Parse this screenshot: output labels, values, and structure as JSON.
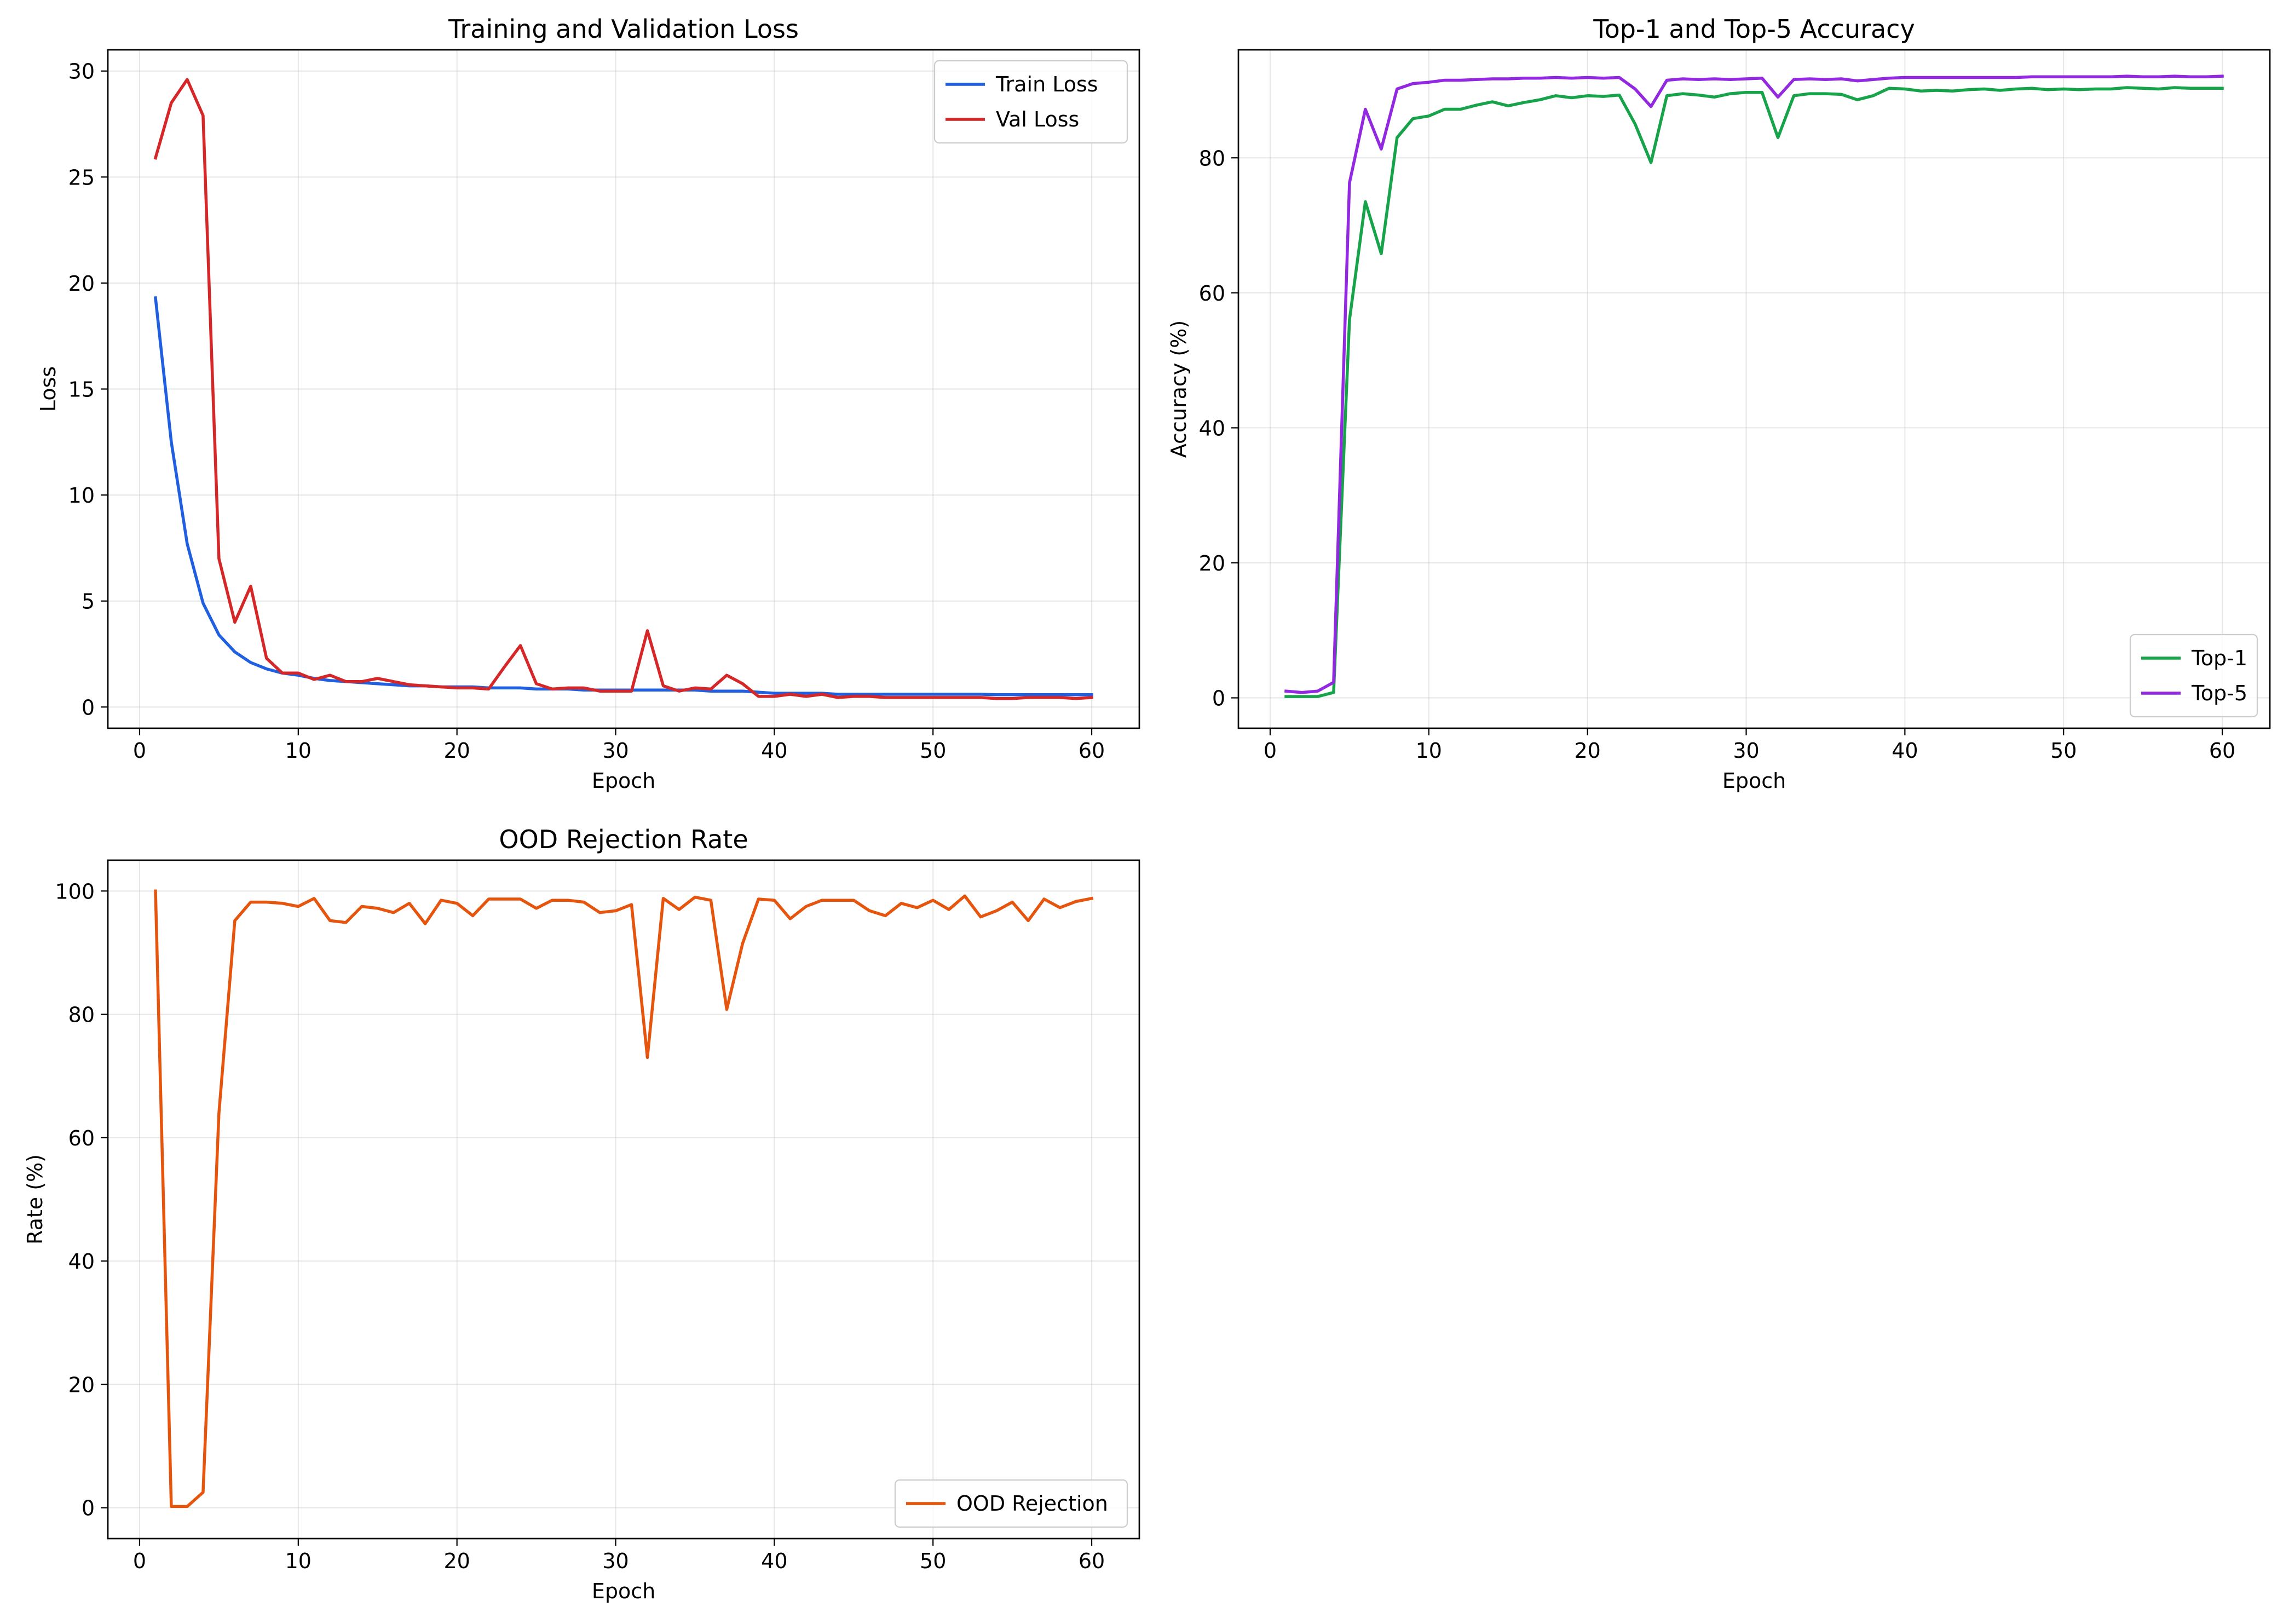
{
  "chart_data": [
    {
      "type": "line",
      "title": "Training and Validation Loss",
      "xlabel": "Epoch",
      "ylabel": "Loss",
      "xlim": [
        -2,
        63
      ],
      "ylim": [
        -1.0,
        31.0
      ],
      "xticks": [
        0,
        10,
        20,
        30,
        40,
        50,
        60
      ],
      "yticks": [
        0,
        5,
        10,
        15,
        20,
        25,
        30
      ],
      "grid": true,
      "legend_position": "top-right",
      "x": [
        1,
        2,
        3,
        4,
        5,
        6,
        7,
        8,
        9,
        10,
        11,
        12,
        13,
        14,
        15,
        16,
        17,
        18,
        19,
        20,
        21,
        22,
        23,
        24,
        25,
        26,
        27,
        28,
        29,
        30,
        31,
        32,
        33,
        34,
        35,
        36,
        37,
        38,
        39,
        40,
        41,
        42,
        43,
        44,
        45,
        46,
        47,
        48,
        49,
        50,
        51,
        52,
        53,
        54,
        55,
        56,
        57,
        58,
        59,
        60
      ],
      "series": [
        {
          "name": "Train Loss",
          "color": "#1f5fe0",
          "values": [
            19.3,
            12.5,
            7.7,
            4.9,
            3.4,
            2.6,
            2.1,
            1.8,
            1.6,
            1.5,
            1.35,
            1.25,
            1.2,
            1.15,
            1.1,
            1.05,
            1.0,
            1.0,
            0.95,
            0.95,
            0.95,
            0.9,
            0.9,
            0.9,
            0.85,
            0.85,
            0.85,
            0.8,
            0.8,
            0.8,
            0.8,
            0.8,
            0.8,
            0.8,
            0.8,
            0.75,
            0.75,
            0.75,
            0.7,
            0.65,
            0.65,
            0.65,
            0.65,
            0.6,
            0.6,
            0.6,
            0.6,
            0.6,
            0.6,
            0.6,
            0.6,
            0.6,
            0.6,
            0.58,
            0.58,
            0.58,
            0.58,
            0.58,
            0.58,
            0.58
          ]
        },
        {
          "name": "Val Loss",
          "color": "#d62728",
          "values": [
            25.9,
            28.5,
            29.6,
            27.9,
            7.0,
            4.0,
            5.7,
            2.3,
            1.6,
            1.6,
            1.3,
            1.5,
            1.2,
            1.2,
            1.35,
            1.2,
            1.05,
            1.0,
            0.95,
            0.9,
            0.9,
            0.85,
            1.9,
            2.9,
            1.1,
            0.85,
            0.9,
            0.9,
            0.75,
            0.75,
            0.75,
            3.6,
            1.0,
            0.75,
            0.9,
            0.85,
            1.5,
            1.1,
            0.5,
            0.5,
            0.6,
            0.5,
            0.6,
            0.45,
            0.5,
            0.5,
            0.45,
            0.45,
            0.45,
            0.45,
            0.45,
            0.45,
            0.45,
            0.4,
            0.4,
            0.45,
            0.45,
            0.45,
            0.4,
            0.45
          ]
        }
      ]
    },
    {
      "type": "line",
      "title": "Top-1 and Top-5 Accuracy",
      "xlabel": "Epoch",
      "ylabel": "Accuracy (%)",
      "xlim": [
        -2,
        63
      ],
      "ylim": [
        -4.5,
        96.0
      ],
      "xticks": [
        0,
        10,
        20,
        30,
        40,
        50,
        60
      ],
      "yticks": [
        0,
        20,
        40,
        60,
        80
      ],
      "grid": true,
      "legend_position": "bottom-right",
      "x": [
        1,
        2,
        3,
        4,
        5,
        6,
        7,
        8,
        9,
        10,
        11,
        12,
        13,
        14,
        15,
        16,
        17,
        18,
        19,
        20,
        21,
        22,
        23,
        24,
        25,
        26,
        27,
        28,
        29,
        30,
        31,
        32,
        33,
        34,
        35,
        36,
        37,
        38,
        39,
        40,
        41,
        42,
        43,
        44,
        45,
        46,
        47,
        48,
        49,
        50,
        51,
        52,
        53,
        54,
        55,
        56,
        57,
        58,
        59,
        60
      ],
      "series": [
        {
          "name": "Top-1",
          "color": "#16a34a",
          "values": [
            0.2,
            0.2,
            0.2,
            0.8,
            56,
            73.5,
            65.8,
            83,
            85.8,
            86.2,
            87.2,
            87.2,
            87.8,
            88.3,
            87.7,
            88.2,
            88.6,
            89.2,
            88.9,
            89.2,
            89.1,
            89.3,
            85.0,
            79.3,
            89.2,
            89.5,
            89.3,
            89.0,
            89.5,
            89.7,
            89.7,
            83.0,
            89.2,
            89.5,
            89.5,
            89.4,
            88.6,
            89.2,
            90.3,
            90.2,
            89.9,
            90.0,
            89.9,
            90.1,
            90.2,
            90.0,
            90.2,
            90.3,
            90.1,
            90.2,
            90.1,
            90.2,
            90.2,
            90.4,
            90.3,
            90.2,
            90.4,
            90.3,
            90.3,
            90.3
          ]
        },
        {
          "name": "Top-5",
          "color": "#9228e0",
          "values": [
            1.0,
            0.8,
            1.0,
            2.3,
            76.3,
            87.2,
            81.3,
            90.2,
            91.0,
            91.2,
            91.5,
            91.5,
            91.6,
            91.7,
            91.7,
            91.8,
            91.8,
            91.9,
            91.8,
            91.9,
            91.8,
            91.9,
            90.2,
            87.6,
            91.5,
            91.7,
            91.6,
            91.7,
            91.6,
            91.7,
            91.8,
            89.0,
            91.6,
            91.7,
            91.6,
            91.7,
            91.4,
            91.6,
            91.8,
            91.9,
            91.9,
            91.9,
            91.9,
            91.9,
            91.9,
            91.9,
            91.9,
            92.0,
            92.0,
            92.0,
            92.0,
            92.0,
            92.0,
            92.1,
            92.0,
            92.0,
            92.1,
            92.0,
            92.0,
            92.1
          ]
        }
      ]
    },
    {
      "type": "line",
      "title": "OOD Rejection Rate",
      "xlabel": "Epoch",
      "ylabel": "Rate (%)",
      "xlim": [
        -2,
        63
      ],
      "ylim": [
        -5.0,
        105.0
      ],
      "xticks": [
        0,
        10,
        20,
        30,
        40,
        50,
        60
      ],
      "yticks": [
        0,
        20,
        40,
        60,
        80,
        100
      ],
      "grid": true,
      "legend_position": "bottom-right",
      "x": [
        1,
        2,
        3,
        4,
        5,
        6,
        7,
        8,
        9,
        10,
        11,
        12,
        13,
        14,
        15,
        16,
        17,
        18,
        19,
        20,
        21,
        22,
        23,
        24,
        25,
        26,
        27,
        28,
        29,
        30,
        31,
        32,
        33,
        34,
        35,
        36,
        37,
        38,
        39,
        40,
        41,
        42,
        43,
        44,
        45,
        46,
        47,
        48,
        49,
        50,
        51,
        52,
        53,
        54,
        55,
        56,
        57,
        58,
        59,
        60
      ],
      "series": [
        {
          "name": "OOD Rejection",
          "color": "#e6550d",
          "values": [
            100,
            0.2,
            0.2,
            2.5,
            64,
            95.2,
            98.2,
            98.2,
            98.0,
            97.5,
            98.8,
            95.2,
            94.9,
            97.5,
            97.2,
            96.5,
            98.0,
            94.7,
            98.5,
            98.0,
            96.0,
            98.7,
            98.7,
            98.7,
            97.2,
            98.5,
            98.5,
            98.2,
            96.5,
            96.8,
            97.8,
            73.0,
            98.8,
            97.0,
            99.0,
            98.5,
            80.8,
            91.5,
            98.7,
            98.5,
            95.5,
            97.5,
            98.5,
            98.5,
            98.5,
            96.8,
            96.0,
            98.0,
            97.3,
            98.5,
            97.0,
            99.2,
            95.8,
            96.8,
            98.2,
            95.2,
            98.7,
            97.3,
            98.3,
            98.8
          ]
        }
      ]
    }
  ]
}
